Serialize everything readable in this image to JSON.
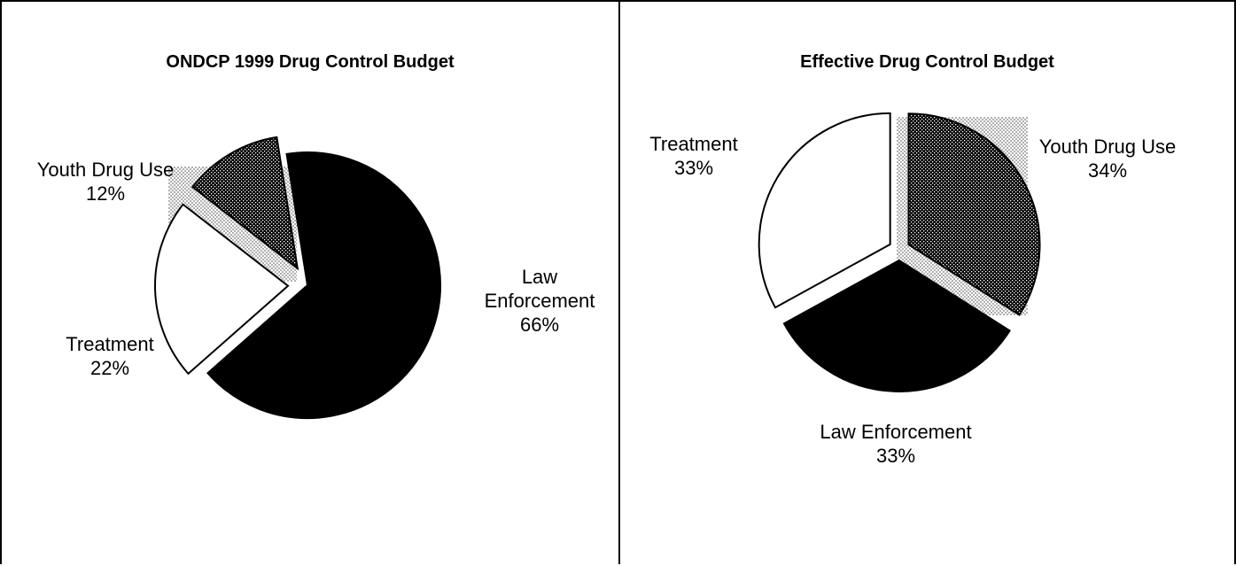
{
  "chart_data": [
    {
      "type": "pie",
      "title": "ONDCP 1999 Drug Control Budget",
      "slices": [
        {
          "label": "Law Enforcement",
          "label_lines": [
            "Law",
            "Enforcement"
          ],
          "value_text": "66%",
          "value": 66,
          "fill": "solid-black",
          "exploded": false
        },
        {
          "label": "Treatment",
          "label_lines": [
            "Treatment"
          ],
          "value_text": "22%",
          "value": 22,
          "fill": "white",
          "exploded": true
        },
        {
          "label": "Youth Drug Use",
          "label_lines": [
            "Youth Drug Use"
          ],
          "value_text": "12%",
          "value": 12,
          "fill": "dark-dotted",
          "exploded": true
        }
      ]
    },
    {
      "type": "pie",
      "title": "Effective Drug Control Budget",
      "slices": [
        {
          "label": "Youth Drug Use",
          "label_lines": [
            "Youth Drug Use"
          ],
          "value_text": "34%",
          "value": 34,
          "fill": "dark-dotted",
          "exploded": true
        },
        {
          "label": "Law Enforcement",
          "label_lines": [
            "Law Enforcement"
          ],
          "value_text": "33%",
          "value": 33,
          "fill": "solid-black",
          "exploded": true
        },
        {
          "label": "Treatment",
          "label_lines": [
            "Treatment"
          ],
          "value_text": "33%",
          "value": 33,
          "fill": "white",
          "exploded": true
        }
      ]
    }
  ],
  "colors": {
    "background": "#ffffff",
    "ink": "#000000",
    "shadow_dots": "#b0b0b0"
  }
}
